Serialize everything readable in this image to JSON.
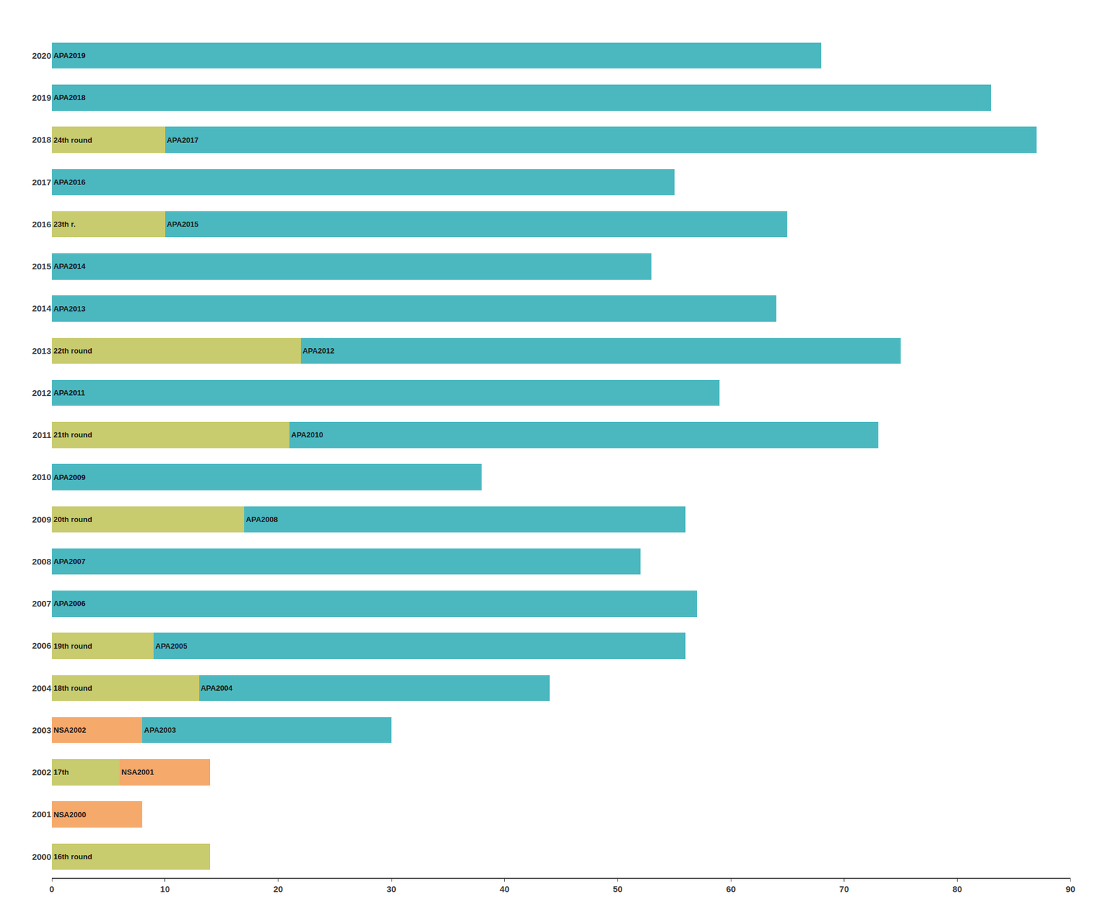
{
  "chart_data": {
    "type": "bar",
    "orientation": "horizontal",
    "stacked": true,
    "categories": [
      "2020",
      "2019",
      "2018",
      "2017",
      "2016",
      "2015",
      "2014",
      "2013",
      "2012",
      "2011",
      "2010",
      "2009",
      "2008",
      "2007",
      "2006",
      "2004",
      "2003",
      "2002",
      "2001",
      "2000"
    ],
    "series": [
      {
        "values": [
          68,
          83,
          10,
          55,
          10,
          53,
          64,
          22,
          59,
          21,
          38,
          17,
          52,
          57,
          9,
          13,
          8,
          6,
          8,
          14
        ],
        "colors": [
          "#4BB8C0",
          "#4BB8C0",
          "#C8CB6E",
          "#4BB8C0",
          "#C8CB6E",
          "#4BB8C0",
          "#4BB8C0",
          "#C8CB6E",
          "#4BB8C0",
          "#C8CB6E",
          "#4BB8C0",
          "#C8CB6E",
          "#4BB8C0",
          "#4BB8C0",
          "#C8CB6E",
          "#C8CB6E",
          "#F5A96B",
          "#C8CB6E",
          "#F5A96B",
          "#C8CB6E"
        ],
        "labels": [
          "APA2019",
          "APA2018",
          "24th round",
          "APA2016",
          "23th r.",
          "APA2014",
          "APA2013",
          "22th round",
          "APA2011",
          "21th round",
          "APA2009",
          "20th round",
          "APA2007",
          "APA2006",
          "19th round",
          "18th round",
          "NSA2002",
          "17th",
          "NSA2000",
          "16th round"
        ]
      },
      {
        "values": [
          null,
          null,
          77,
          null,
          55,
          null,
          null,
          53,
          null,
          52,
          null,
          39,
          null,
          null,
          47,
          31,
          22,
          8,
          null,
          null
        ],
        "colors": [
          null,
          null,
          "#4BB8C0",
          null,
          "#4BB8C0",
          null,
          null,
          "#4BB8C0",
          null,
          "#4BB8C0",
          null,
          "#4BB8C0",
          null,
          null,
          "#4BB8C0",
          "#4BB8C0",
          "#4BB8C0",
          "#F5A96B",
          null,
          null
        ],
        "labels": [
          null,
          null,
          "APA2017",
          null,
          "APA2015",
          null,
          null,
          "APA2012",
          null,
          "APA2010",
          null,
          "APA2008",
          null,
          null,
          "APA2005",
          "APA2004",
          "APA2003",
          "NSA2001",
          null,
          null
        ]
      }
    ],
    "xlim": [
      0,
      90
    ],
    "xticks": [
      0,
      10,
      20,
      30,
      40,
      50,
      60,
      70,
      80,
      90
    ],
    "grid": false,
    "data_labels": false
  }
}
